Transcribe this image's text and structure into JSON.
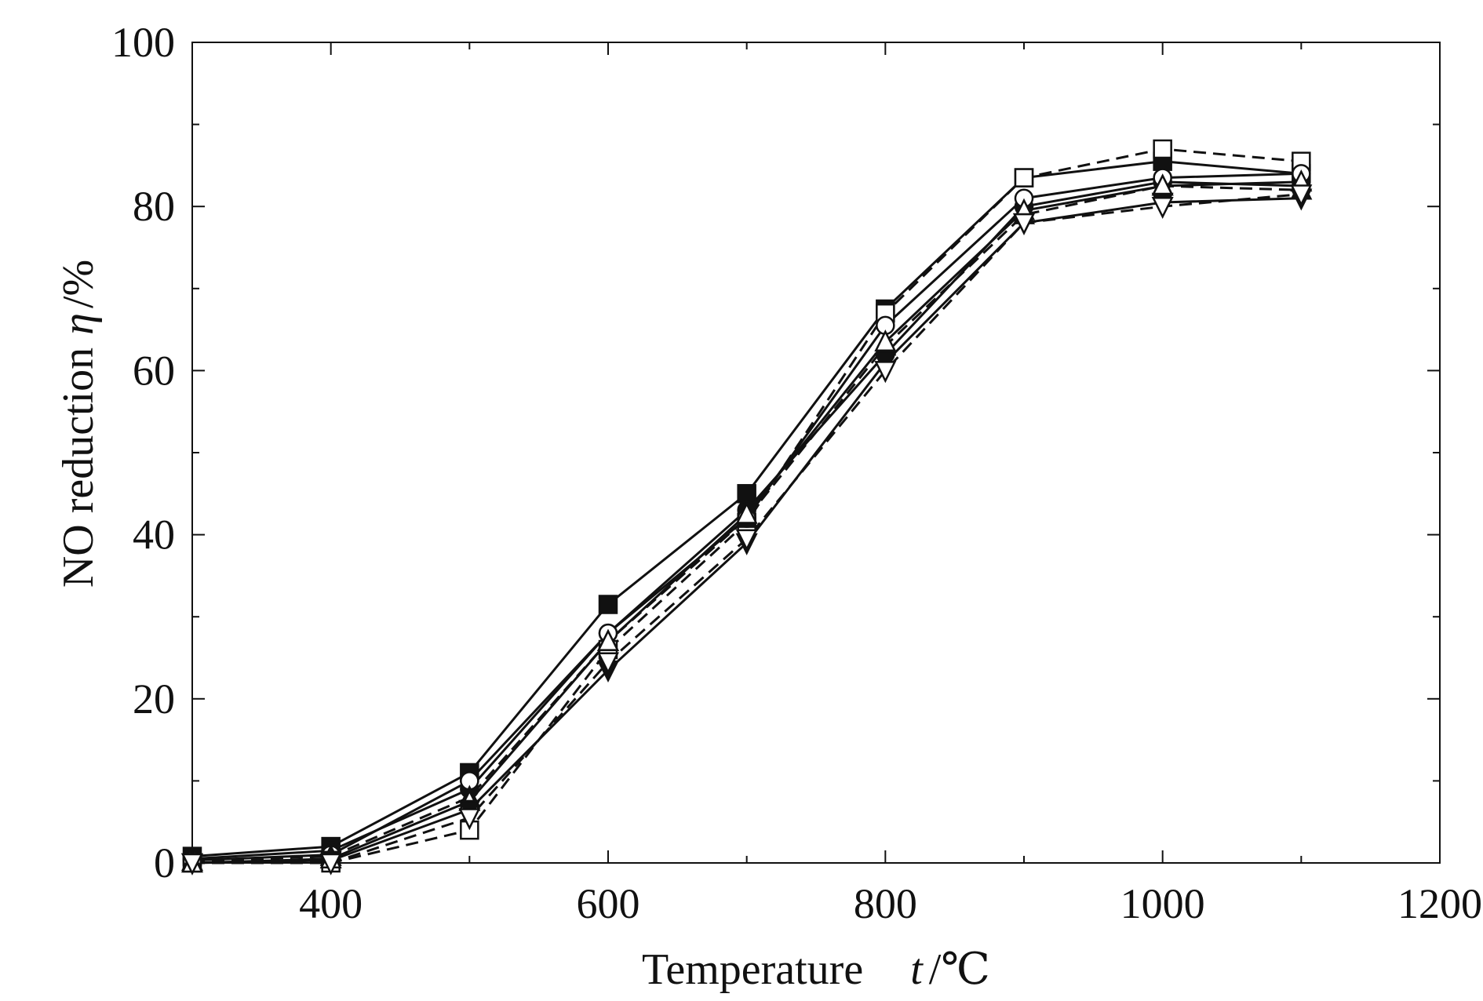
{
  "chart_data": {
    "type": "line",
    "title": "",
    "xlabel": "Temperature",
    "xlabel_var": "t",
    "xlabel_unit": "/℃",
    "ylabel": "NO reduction",
    "ylabel_var": "η",
    "ylabel_unit": "/%",
    "xlim": [
      300,
      1200
    ],
    "ylim": [
      0,
      100
    ],
    "xticks": [
      400,
      600,
      800,
      1000,
      1200
    ],
    "xtick_labels": [
      "400",
      "600",
      "800",
      "1000",
      "1200"
    ],
    "yticks": [
      0,
      20,
      40,
      60,
      80,
      100
    ],
    "ytick_labels": [
      "0",
      "20",
      "40",
      "60",
      "80",
      "100"
    ],
    "y_minor_ticks": [
      10,
      30,
      50,
      70,
      90
    ],
    "x_minor_ticks": [
      500,
      700,
      900,
      1100
    ],
    "grid": false,
    "legend": "none",
    "x": [
      300,
      400,
      500,
      600,
      700,
      800,
      900,
      1000,
      1100
    ],
    "series": [
      {
        "marker": "square-filled",
        "line": "solid",
        "values": [
          0.8,
          2.0,
          11.0,
          31.5,
          45.0,
          67.5,
          83.5,
          85.5,
          84.0
        ]
      },
      {
        "marker": "square-open",
        "line": "dashed",
        "values": [
          0.0,
          0.0,
          4.0,
          26.0,
          41.5,
          67.0,
          83.5,
          87.0,
          85.5
        ]
      },
      {
        "marker": "circle-filled",
        "line": "solid",
        "values": [
          0.5,
          1.5,
          9.0,
          28.0,
          43.0,
          62.0,
          80.0,
          83.0,
          82.5
        ]
      },
      {
        "marker": "circle-open",
        "line": "solid",
        "values": [
          0.3,
          1.0,
          10.0,
          28.0,
          42.0,
          65.5,
          81.0,
          83.5,
          84.0
        ]
      },
      {
        "marker": "triangle-up-filled",
        "line": "dashed",
        "values": [
          0.2,
          0.8,
          8.0,
          27.0,
          42.0,
          63.0,
          79.0,
          82.5,
          82.0
        ]
      },
      {
        "marker": "triangle-up-open",
        "line": "solid",
        "values": [
          0.0,
          0.5,
          7.5,
          27.0,
          42.5,
          63.5,
          79.5,
          82.5,
          83.0
        ]
      },
      {
        "marker": "triangle-down-filled",
        "line": "solid",
        "values": [
          0.0,
          0.3,
          6.5,
          23.5,
          39.0,
          61.0,
          78.0,
          80.5,
          81.0
        ]
      },
      {
        "marker": "triangle-down-open",
        "line": "dashed",
        "values": [
          0.0,
          0.0,
          5.5,
          24.5,
          39.5,
          60.0,
          78.0,
          80.0,
          81.5
        ]
      }
    ]
  }
}
